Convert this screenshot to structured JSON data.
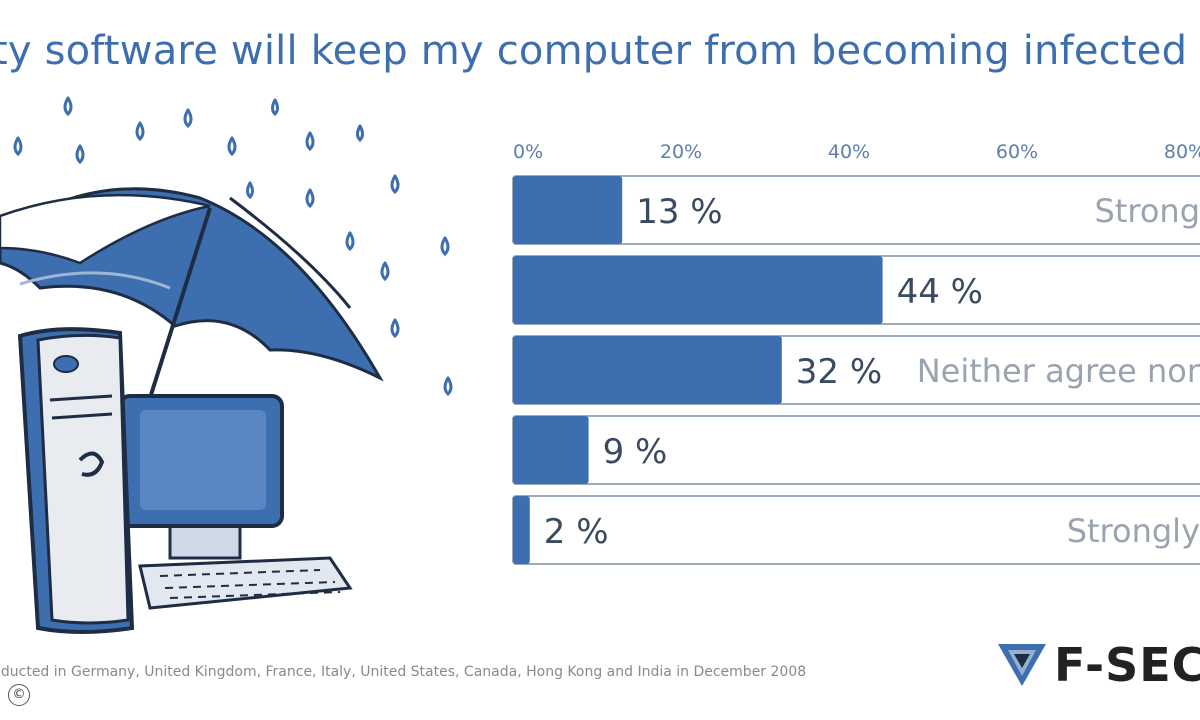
{
  "title": "rity software will keep my computer from becoming infected with r",
  "footnote": "nducted in Germany, United Kingdom, France, Italy, United States, Canada, Hong Kong and India in December 2008",
  "copyright": "©",
  "logo": {
    "text": "F-SEC"
  },
  "colors": {
    "bar": "#3d6fb0",
    "bar_dark": "#2c5590",
    "track_border": "#9aaabb",
    "title": "#3d6fb0",
    "tick": "#5a7fb0"
  },
  "chart_data": {
    "type": "bar",
    "orientation": "horizontal",
    "xlim": [
      0,
      100
    ],
    "ticks": [
      {
        "value": 0,
        "label": "0%"
      },
      {
        "value": 20,
        "label": "20%"
      },
      {
        "value": 40,
        "label": "40%"
      },
      {
        "value": 60,
        "label": "60%"
      },
      {
        "value": 80,
        "label": "80%"
      }
    ],
    "bars": [
      {
        "value": 13,
        "value_label": "13 %",
        "category": "Strong"
      },
      {
        "value": 44,
        "value_label": "44 %",
        "category": ""
      },
      {
        "value": 32,
        "value_label": "32 %",
        "category": "Neither agree nor"
      },
      {
        "value": 9,
        "value_label": "9 %",
        "category": ""
      },
      {
        "value": 2,
        "value_label": "2 %",
        "category": "Strongly"
      }
    ]
  }
}
